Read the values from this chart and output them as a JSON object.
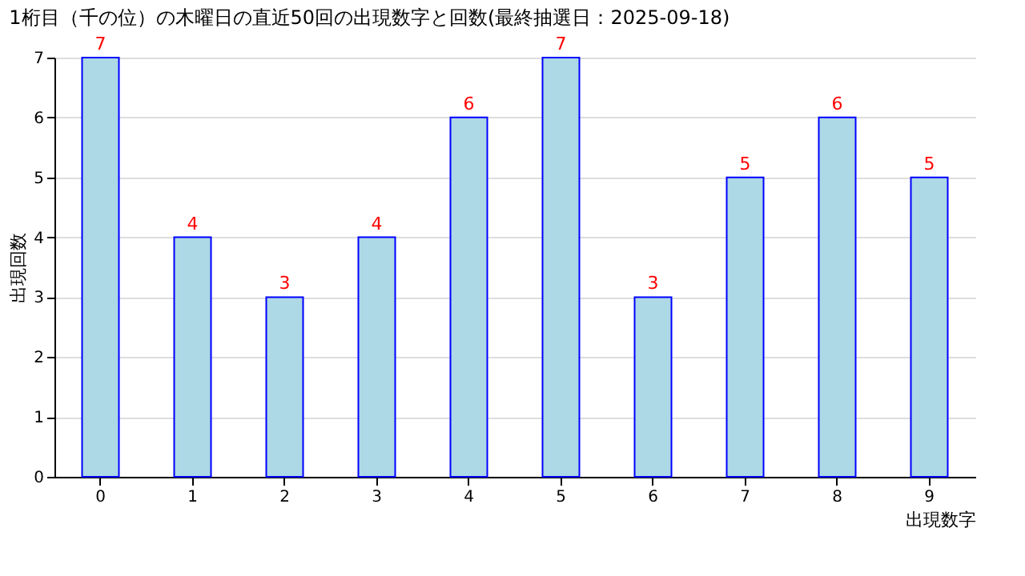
{
  "chart_data": {
    "type": "bar",
    "title": "1桁目（千の位）の木曜日の直近50回の出現数字と回数(最終抽選日：2025-09-18)",
    "xlabel": "出現数字",
    "ylabel": "出現回数",
    "categories": [
      "0",
      "1",
      "2",
      "3",
      "4",
      "5",
      "6",
      "7",
      "8",
      "9"
    ],
    "series": [
      {
        "color": "#add8e6",
        "values": [
          7,
          4,
          3,
          4,
          6,
          7,
          3,
          5,
          6,
          5
        ]
      }
    ],
    "ylim": [
      0,
      7
    ],
    "yticks": [
      0,
      1,
      2,
      3,
      4,
      5,
      6,
      7
    ],
    "grid": "y",
    "data_labels": true
  }
}
